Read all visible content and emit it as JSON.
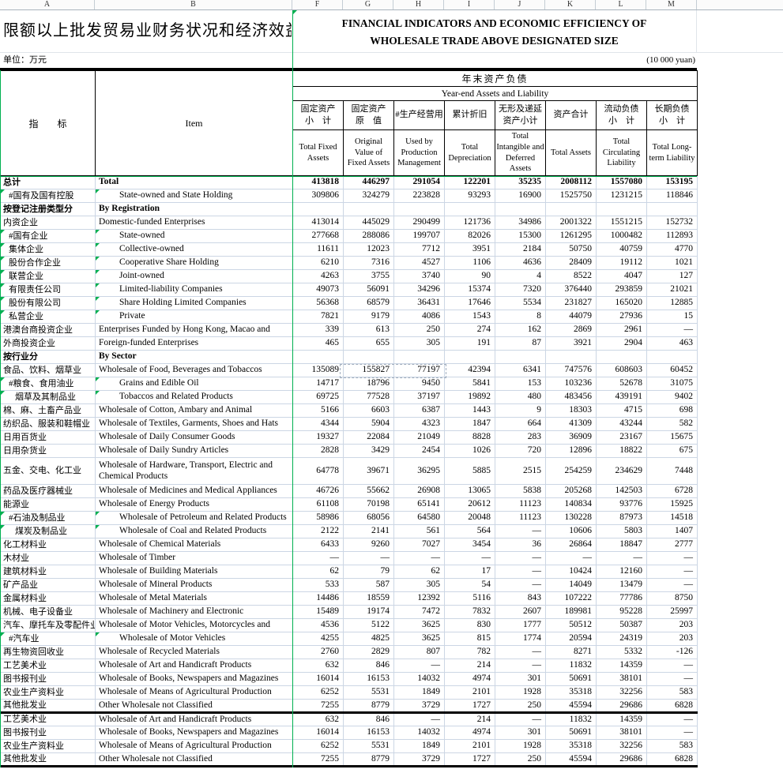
{
  "sheet": {
    "column_letters": [
      "A",
      "B",
      "F",
      "G",
      "H",
      "I",
      "J",
      "K",
      "L",
      "M"
    ],
    "title_cn": "限额以上批发贸易业财务状况和经济效益",
    "title_en_line1": "FINANCIAL INDICATORS AND ECONOMIC EFFICIENCY OF",
    "title_en_line2": "WHOLESALE TRADE ABOVE DESIGNATED SIZE",
    "unit_cn": "单位：万元",
    "unit_en": "(10 000 yuan)"
  },
  "colors": {
    "green_accent": "#00b050",
    "gridline": "#ccd6e4"
  },
  "table": {
    "indicator_header_cn": "指　　标",
    "item_header": "Item",
    "group_header_cn": "年末资产负债",
    "group_header_en": "Year-end Assets and Liability",
    "columns": [
      {
        "cn": "固定资产\n小　计",
        "en": "Total Fixed Assets"
      },
      {
        "cn": "固定资产\n原　值",
        "en": "Original Value of Fixed Assets"
      },
      {
        "cn": "#生产经营用",
        "en": "Used by Production Management"
      },
      {
        "cn": "累计折旧",
        "en": "Total Depreciation"
      },
      {
        "cn": "无形及递延\n资产小计",
        "en": "Total Intangible and Deferred Assets"
      },
      {
        "cn": "资产合计",
        "en": "Total Assets"
      },
      {
        "cn": "流动负债\n小　计",
        "en": "Total Circulating Liability"
      },
      {
        "cn": "长期负债\n小　计",
        "en": "Total Long-term Liability"
      }
    ],
    "rows": [
      {
        "cn": "总计",
        "en": "Total",
        "bold": true,
        "values": [
          "413818",
          "446297",
          "291054",
          "122201",
          "35235",
          "2008112",
          "1557080",
          "153195"
        ]
      },
      {
        "cn": "#国有及国有控股",
        "en": "State-owned and State Holding",
        "indent_a": 1,
        "indent_b": 1,
        "flag": true,
        "values": [
          "309806",
          "324279",
          "223828",
          "93293",
          "16900",
          "1525750",
          "1231215",
          "118846"
        ]
      },
      {
        "cn": "按登记注册类型分",
        "en": "By Registration",
        "bold": true,
        "values": [
          "",
          "",
          "",
          "",
          "",
          "",
          "",
          ""
        ]
      },
      {
        "cn": "内资企业",
        "en": "Domestic-funded Enterprises",
        "values": [
          "413014",
          "445029",
          "290499",
          "121736",
          "34986",
          "2001322",
          "1551215",
          "152732"
        ]
      },
      {
        "cn": "#国有企业",
        "en": "State-owned",
        "indent_a": 1,
        "indent_b": 1,
        "flag": true,
        "values": [
          "277668",
          "288086",
          "199707",
          "82026",
          "15300",
          "1261295",
          "1000482",
          "112893"
        ]
      },
      {
        "cn": "集体企业",
        "en": "Collective-owned",
        "indent_a": 1,
        "indent_b": 1,
        "flag": true,
        "values": [
          "11611",
          "12023",
          "7712",
          "3951",
          "2184",
          "50750",
          "40759",
          "4770"
        ]
      },
      {
        "cn": "股份合作企业",
        "en": "Cooperative Share Holding",
        "indent_a": 1,
        "indent_b": 1,
        "flag": true,
        "values": [
          "6210",
          "7316",
          "4527",
          "1106",
          "4636",
          "28409",
          "19112",
          "1021"
        ]
      },
      {
        "cn": "联营企业",
        "en": "Joint-owned",
        "indent_a": 1,
        "indent_b": 1,
        "flag": true,
        "values": [
          "4263",
          "3755",
          "3740",
          "90",
          "4",
          "8522",
          "4047",
          "127"
        ]
      },
      {
        "cn": "有限责任公司",
        "en": "Limited-liability Companies",
        "indent_a": 1,
        "indent_b": 1,
        "flag": true,
        "values": [
          "49073",
          "56091",
          "34296",
          "15374",
          "7320",
          "376440",
          "293859",
          "21021"
        ]
      },
      {
        "cn": "股份有限公司",
        "en": "Share Holding Limited Companies",
        "indent_a": 1,
        "indent_b": 1,
        "flag": true,
        "values": [
          "56368",
          "68579",
          "36431",
          "17646",
          "5534",
          "231827",
          "165020",
          "12885"
        ]
      },
      {
        "cn": "私营企业",
        "en": "Private",
        "indent_a": 1,
        "indent_b": 1,
        "flag": true,
        "values": [
          "7821",
          "9179",
          "4086",
          "1543",
          "8",
          "44079",
          "27936",
          "15"
        ]
      },
      {
        "cn": "港澳台商投资企业",
        "en": "Enterprises Funded by Hong Kong, Macao and",
        "values": [
          "339",
          "613",
          "250",
          "274",
          "162",
          "2869",
          "2961",
          "—"
        ]
      },
      {
        "cn": "外商投资企业",
        "en": "Foreign-funded Enterprises",
        "values": [
          "465",
          "655",
          "305",
          "191",
          "87",
          "3921",
          "2904",
          "463"
        ]
      },
      {
        "cn": "按行业分",
        "en": "By Sector",
        "bold": true,
        "values": [
          "",
          "",
          "",
          "",
          "",
          "",
          "",
          ""
        ]
      },
      {
        "cn": "食品、饮料、烟草业",
        "en": "Wholesale of Food, Beverages and Tobaccos",
        "marquee": true,
        "values": [
          "135089",
          "155827",
          "77197",
          "42394",
          "6341",
          "747576",
          "608603",
          "60452"
        ]
      },
      {
        "cn": "#粮食、食用油业",
        "en": "Grains and Edible Oil",
        "indent_a": 1,
        "indent_b": 1,
        "flag": true,
        "values": [
          "14717",
          "18796",
          "9450",
          "5841",
          "153",
          "103236",
          "52678",
          "31075"
        ]
      },
      {
        "cn": "烟草及其制品业",
        "en": "Tobaccos and Related Products",
        "indent_a": 2,
        "indent_b": 1,
        "flag": true,
        "values": [
          "69725",
          "77528",
          "37197",
          "19892",
          "480",
          "483456",
          "439191",
          "9402"
        ]
      },
      {
        "cn": "棉、麻、土畜产品业",
        "en": "Wholesale of Cotton, Ambary and Animal",
        "values": [
          "5166",
          "6603",
          "6387",
          "1443",
          "9",
          "18303",
          "4715",
          "698"
        ]
      },
      {
        "cn": "纺织品、服装和鞋帽业",
        "en": "Wholesale of Textiles, Garments, Shoes and Hats",
        "values": [
          "4344",
          "5904",
          "4323",
          "1847",
          "664",
          "41309",
          "43244",
          "582"
        ]
      },
      {
        "cn": "日用百货业",
        "en": "Wholesale of Daily Consumer Goods",
        "values": [
          "19327",
          "22084",
          "21049",
          "8828",
          "283",
          "36909",
          "23167",
          "15675"
        ]
      },
      {
        "cn": "日用杂货业",
        "en": "Wholesale of Daily Sundry Articles",
        "values": [
          "2828",
          "3429",
          "2454",
          "1026",
          "720",
          "12896",
          "18822",
          "675"
        ]
      },
      {
        "cn": "五金、交电、化工业",
        "en": "Wholesale of Hardware, Transport, Electric and Chemical Products",
        "tall": true,
        "values": [
          "64778",
          "39671",
          "36295",
          "5885",
          "2515",
          "254259",
          "234629",
          "7448"
        ]
      },
      {
        "cn": "药品及医疗器械业",
        "en": "Wholesale of Medicines and Medical Appliances",
        "values": [
          "46726",
          "55662",
          "26908",
          "13065",
          "5838",
          "205268",
          "142503",
          "6728"
        ]
      },
      {
        "cn": "能源业",
        "en": "Wholesale of Energy Products",
        "values": [
          "61108",
          "70198",
          "65141",
          "20612",
          "11123",
          "140834",
          "93776",
          "15925"
        ]
      },
      {
        "cn": "#石油及制品业",
        "en": "Wholesale of Petroleum and Related Products",
        "indent_a": 1,
        "indent_b": 1,
        "flag": true,
        "values": [
          "58986",
          "68056",
          "64580",
          "20048",
          "11123",
          "130228",
          "87973",
          "14518"
        ]
      },
      {
        "cn": "煤炭及制品业",
        "en": "Wholesale of Coal and Related Products",
        "indent_a": 2,
        "indent_b": 1,
        "flag": true,
        "values": [
          "2122",
          "2141",
          "561",
          "564",
          "—",
          "10606",
          "5803",
          "1407"
        ]
      },
      {
        "cn": "化工材料业",
        "en": "Wholesale of Chemical Materials",
        "values": [
          "6433",
          "9260",
          "7027",
          "3454",
          "36",
          "26864",
          "18847",
          "2777"
        ]
      },
      {
        "cn": "木材业",
        "en": "Wholesale of Timber",
        "values": [
          "—",
          "—",
          "—",
          "—",
          "—",
          "—",
          "—",
          "—"
        ]
      },
      {
        "cn": "建筑材料业",
        "en": "Wholesale of Building Materials",
        "values": [
          "62",
          "79",
          "62",
          "17",
          "—",
          "10424",
          "12160",
          "—"
        ]
      },
      {
        "cn": "矿产品业",
        "en": "Wholesale of Mineral Products",
        "values": [
          "533",
          "587",
          "305",
          "54",
          "—",
          "14049",
          "13479",
          "—"
        ]
      },
      {
        "cn": "金属材料业",
        "en": "Wholesale of Metal Materials",
        "values": [
          "14486",
          "18559",
          "12392",
          "5116",
          "843",
          "107222",
          "77786",
          "8750"
        ]
      },
      {
        "cn": "机械、电子设备业",
        "en": "Wholesale of Machinery and Electronic",
        "values": [
          "15489",
          "19174",
          "7472",
          "7832",
          "2607",
          "189981",
          "95228",
          "25997"
        ]
      },
      {
        "cn": "汽车、摩托车及零配件业",
        "en": "Wholesale of Motor Vehicles, Motorcycles and",
        "values": [
          "4536",
          "5122",
          "3625",
          "830",
          "1777",
          "50512",
          "50387",
          "203"
        ]
      },
      {
        "cn": "#汽车业",
        "en": "Wholesale of Motor Vehicles",
        "indent_a": 1,
        "indent_b": 1,
        "flag": true,
        "values": [
          "4255",
          "4825",
          "3625",
          "815",
          "1774",
          "20594",
          "24319",
          "203"
        ]
      },
      {
        "cn": "再生物资回收业",
        "en": "Wholesale of Recycled Materials",
        "values": [
          "2760",
          "2829",
          "807",
          "782",
          "—",
          "8271",
          "5332",
          "-126"
        ]
      },
      {
        "cn": "工艺美术业",
        "en": "Wholesale of Art and Handicraft Products",
        "values": [
          "632",
          "846",
          "—",
          "214",
          "—",
          "11832",
          "14359",
          "—"
        ]
      },
      {
        "cn": "图书报刊业",
        "en": "Wholesale of Books, Newspapers and Magazines",
        "values": [
          "16014",
          "16153",
          "14032",
          "4974",
          "301",
          "50691",
          "38101",
          "—"
        ]
      },
      {
        "cn": "农业生产资料业",
        "en": "Wholesale of Means of Agricultural Production",
        "values": [
          "6252",
          "5531",
          "1849",
          "2101",
          "1928",
          "35318",
          "32256",
          "583"
        ]
      },
      {
        "cn": "其他批发业",
        "en": "Other Wholesale not Classified",
        "thick_below": true,
        "values": [
          "7255",
          "8779",
          "3729",
          "1727",
          "250",
          "45594",
          "29686",
          "6828"
        ]
      },
      {
        "cn": "工艺美术业",
        "en": "Wholesale of Art and Handicraft Products",
        "values": [
          "632",
          "846",
          "—",
          "214",
          "—",
          "11832",
          "14359",
          "—"
        ]
      },
      {
        "cn": "图书报刊业",
        "en": "Wholesale of Books, Newspapers and Magazines",
        "values": [
          "16014",
          "16153",
          "14032",
          "4974",
          "301",
          "50691",
          "38101",
          "—"
        ]
      },
      {
        "cn": "农业生产资料业",
        "en": "Wholesale of Means of Agricultural Production",
        "values": [
          "6252",
          "5531",
          "1849",
          "2101",
          "1928",
          "35318",
          "32256",
          "583"
        ]
      },
      {
        "cn": "其他批发业",
        "en": "Other Wholesale not Classified",
        "thick_below": true,
        "values": [
          "7255",
          "8779",
          "3729",
          "1727",
          "250",
          "45594",
          "29686",
          "6828"
        ]
      }
    ]
  }
}
